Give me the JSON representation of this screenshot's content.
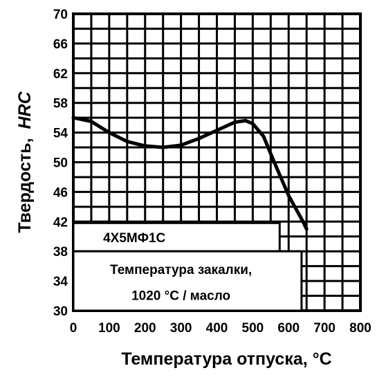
{
  "chart_data": {
    "type": "line",
    "xlabel": "Температура отпуска, °C",
    "ylabel_prefix": "Твердость,",
    "ylabel_unit": "HRC",
    "xlim": [
      0,
      800
    ],
    "ylim": [
      30,
      70
    ],
    "x_ticks": [
      0,
      100,
      200,
      300,
      400,
      500,
      600,
      700,
      800
    ],
    "y_ticks": [
      30,
      34,
      38,
      42,
      46,
      50,
      54,
      58,
      62,
      66,
      70
    ],
    "grid": true,
    "grid_step_x": 50,
    "grid_step_y": 2,
    "series": [
      {
        "x": [
          0,
          50,
          100,
          150,
          200,
          250,
          300,
          350,
          400,
          450,
          480,
          500,
          530,
          560,
          600,
          640,
          650
        ],
        "y": [
          56,
          55.5,
          54,
          52.8,
          52.2,
          52,
          52.3,
          53.2,
          54.3,
          55.4,
          55.6,
          55.2,
          53.5,
          50,
          45.5,
          42,
          41
        ]
      }
    ],
    "annotations": {
      "steel_grade": "4Х5МФ1С",
      "hardening_line1": "Температура закалки,",
      "hardening_line2": "1020 °С / масло"
    }
  }
}
